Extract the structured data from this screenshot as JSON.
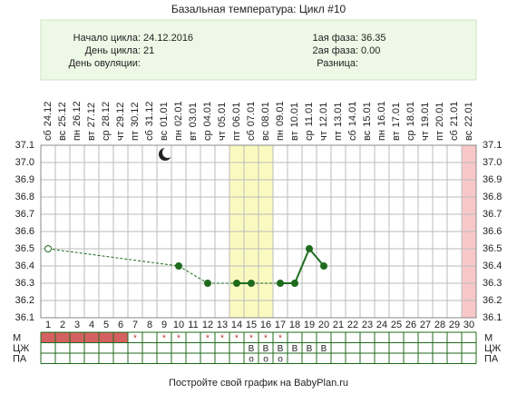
{
  "chart_data": {
    "type": "line",
    "title": "Базальная температура: Цикл #10",
    "info_left": [
      {
        "label": "Начало цикла:",
        "value": "24.12.2016"
      },
      {
        "label": "День цикла:",
        "value": "21"
      },
      {
        "label": "День овуляции:"
      }
    ],
    "info_right": [
      {
        "label": "1ая фаза:",
        "value": "36.35"
      },
      {
        "label": "2ая фаза:",
        "value": "0.00"
      },
      {
        "label": "Разница:"
      }
    ],
    "categories": [
      "1",
      "2",
      "3",
      "4",
      "5",
      "6",
      "7",
      "8",
      "9",
      "10",
      "11",
      "12",
      "13",
      "14",
      "15",
      "16",
      "17",
      "18",
      "19",
      "20",
      "21",
      "22",
      "23",
      "24",
      "25",
      "26",
      "27",
      "28",
      "29",
      "30"
    ],
    "weekdays": [
      "сб",
      "вс",
      "пн",
      "вт",
      "ср",
      "чт",
      "пт",
      "сб",
      "вс",
      "пн",
      "вт",
      "ср",
      "чт",
      "пт",
      "сб",
      "вс",
      "пн",
      "вт",
      "ср",
      "чт",
      "пт",
      "сб",
      "вс",
      "пн",
      "вт",
      "ср",
      "чт",
      "пт",
      "сб",
      "вс"
    ],
    "dates": [
      "24.12",
      "25.12",
      "26.12",
      "27.12",
      "28.12",
      "29.12",
      "30.12",
      "31.12",
      "01.01",
      "02.01",
      "03.01",
      "04.01",
      "05.01",
      "06.01",
      "07.01",
      "08.01",
      "09.01",
      "10.01",
      "11.01",
      "12.01",
      "13.01",
      "14.01",
      "15.01",
      "16.01",
      "17.01",
      "18.01",
      "19.01",
      "20.01",
      "21.01",
      "22.01"
    ],
    "series": [
      {
        "name": "Температура",
        "color": "#1e6b1e",
        "values": [
          36.5,
          null,
          null,
          null,
          null,
          null,
          null,
          null,
          null,
          36.4,
          null,
          36.3,
          null,
          36.3,
          36.3,
          null,
          36.3,
          36.3,
          36.5,
          36.4,
          null,
          null,
          null,
          null,
          null,
          null,
          null,
          null,
          null,
          null
        ]
      }
    ],
    "ylim": [
      36.1,
      37.1
    ],
    "yticks": [
      36.1,
      36.2,
      36.3,
      36.4,
      36.5,
      36.6,
      36.7,
      36.8,
      36.9,
      {
        "value": 37.0,
        "label": "37.0"
      },
      37.1
    ],
    "highlight_days": [
      14,
      15,
      16
    ],
    "highlight_color": "#fafac0",
    "current_day": 30,
    "current_color": "#f8c8c8",
    "period_days": [
      1,
      2,
      3,
      4,
      5,
      6
    ],
    "period_color": "#d46060",
    "rows": [
      {
        "label": "М",
        "cells": [
          null,
          null,
          null,
          null,
          null,
          null,
          "*",
          null,
          "*",
          "*",
          null,
          "*",
          "*",
          "*",
          "*",
          "*",
          "*",
          null,
          null,
          null,
          null,
          null,
          null,
          null,
          null,
          null,
          null,
          null,
          null,
          null
        ]
      },
      {
        "label": "ЦЖ",
        "cells": [
          null,
          null,
          null,
          null,
          null,
          null,
          null,
          null,
          null,
          null,
          null,
          null,
          null,
          null,
          "B",
          "B",
          "B",
          "B",
          "B",
          "B",
          null,
          null,
          null,
          null,
          null,
          null,
          null,
          null,
          null,
          null
        ]
      },
      {
        "label": "ПА",
        "cells": [
          null,
          null,
          null,
          null,
          null,
          null,
          null,
          null,
          null,
          null,
          null,
          null,
          null,
          null,
          "o",
          "o",
          "o",
          null,
          null,
          null,
          null,
          null,
          null,
          null,
          null,
          null,
          null,
          null,
          null,
          null
        ]
      }
    ],
    "footer": "Постройте свой график на BabyPlan.ru"
  }
}
